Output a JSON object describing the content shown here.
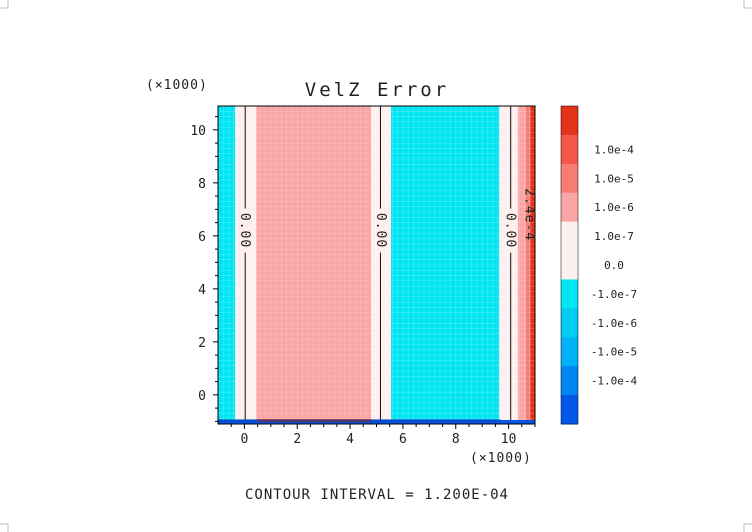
{
  "chart_data": {
    "type": "heatmap",
    "title": "VelZ Error",
    "x_multiplier": "(×1000)",
    "y_multiplier": "(×1000)",
    "xlim": [
      -1.0,
      11.0
    ],
    "ylim": [
      -1.1,
      10.9
    ],
    "x_ticks": [
      0,
      2,
      4,
      6,
      8,
      10
    ],
    "x_tick_labels": [
      "0",
      "2",
      "4",
      "6",
      "8",
      "10"
    ],
    "y_ticks": [
      0,
      2,
      4,
      6,
      8,
      10
    ],
    "y_tick_labels": [
      "0",
      "2",
      "4",
      "6",
      "8",
      "10"
    ],
    "bands": [
      {
        "x0": -1.0,
        "x1": -0.35,
        "level": "-1.0e-7",
        "color": "#00e5f2"
      },
      {
        "x0": -0.35,
        "x1": 0.45,
        "level": "0.0",
        "color": "#fff0f0"
      },
      {
        "x0": 0.45,
        "x1": 4.8,
        "level": "1.0e-7",
        "color": "#f9a5a5"
      },
      {
        "x0": 4.8,
        "x1": 5.55,
        "level": "0.0",
        "color": "#fff0f0"
      },
      {
        "x0": 5.55,
        "x1": 9.65,
        "level": "-1.0e-7",
        "color": "#00e5f2"
      },
      {
        "x0": 9.65,
        "x1": 10.35,
        "level": "0.0",
        "color": "#fff0f0"
      },
      {
        "x0": 10.35,
        "x1": 10.65,
        "level": "1.0e-7",
        "color": "#f9a5a5"
      },
      {
        "x0": 10.65,
        "x1": 10.82,
        "level": "1.0e-6",
        "color": "#f67c74"
      },
      {
        "x0": 10.82,
        "x1": 11.0,
        "level": "1.0e-4",
        "color": "#e4331a"
      }
    ],
    "contour_lines_x": [
      0.03,
      5.15,
      10.08
    ],
    "contour_labels": [
      {
        "x": 0.0,
        "y": 6.2,
        "text": "0.00"
      },
      {
        "x": 5.15,
        "y": 6.2,
        "text": "0.00"
      },
      {
        "x": 10.05,
        "y": 6.2,
        "text": "0.00"
      },
      {
        "x": 10.78,
        "y": 6.8,
        "text": "2.4e-4"
      }
    ],
    "bottom_strip": {
      "y0": -1.1,
      "y1": -0.95,
      "color": "#0057e8"
    },
    "colorbar": {
      "levels": [
        {
          "label": "",
          "color": "#e4331a"
        },
        {
          "label": "1.0e-4",
          "color": "#f4574a"
        },
        {
          "label": "1.0e-5",
          "color": "#f67c74"
        },
        {
          "label": "1.0e-6",
          "color": "#f9a5a5"
        },
        {
          "label": "1.0e-7",
          "color": "#fff0f0"
        },
        {
          "label": "0.0",
          "color": "#fff0f0"
        },
        {
          "label": "-1.0e-7",
          "color": "#00e5f2"
        },
        {
          "label": "-1.0e-6",
          "color": "#00cbf5"
        },
        {
          "label": "-1.0e-5",
          "color": "#00b1f8"
        },
        {
          "label": "-1.0e-4",
          "color": "#0086f0"
        },
        {
          "label": "",
          "color": "#0057e8"
        }
      ]
    },
    "footer": "CONTOUR INTERVAL = 1.200E-04",
    "grid": true
  }
}
